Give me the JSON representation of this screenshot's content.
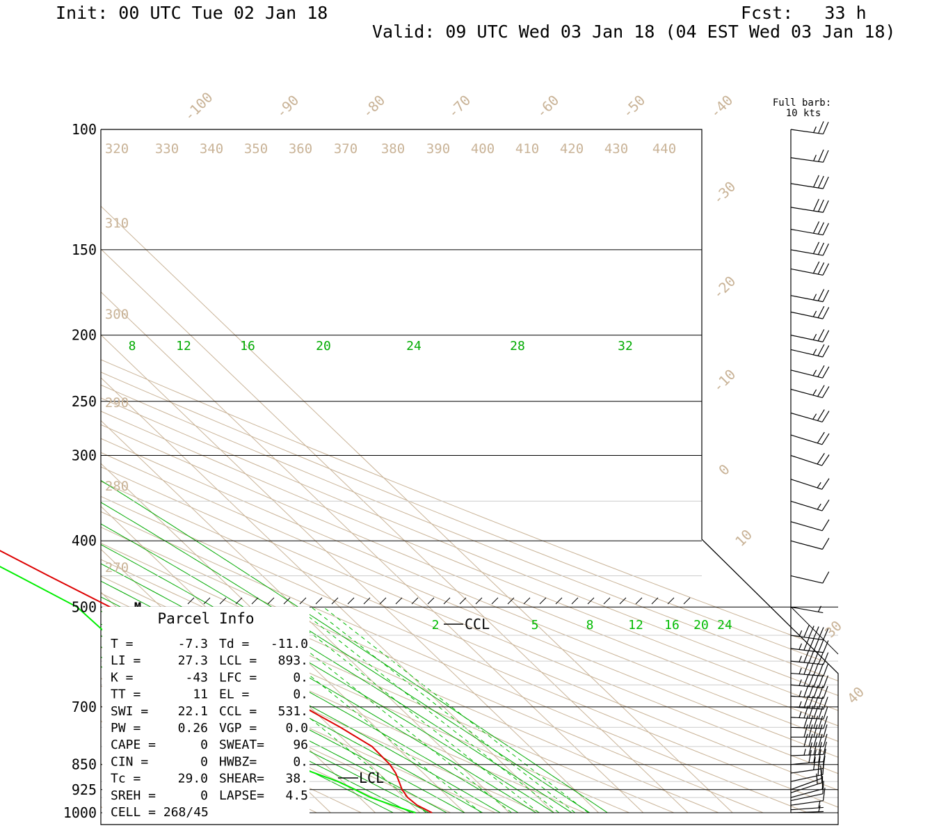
{
  "header": {
    "init": "Init: 00 UTC Tue 02 Jan 18",
    "fcst": "Fcst:   33 h",
    "valid": "Valid: 09 UTC Wed 03 Jan 18 (04 EST Wed 03 Jan 18)"
  },
  "barb_legend": {
    "line1": "Full barb:",
    "line2": "10 kts"
  },
  "marker_m": "M",
  "ccl_label": "CCL",
  "lcl_label": "LCL",
  "parcel": {
    "title": "Parcel Info",
    "rows": [
      [
        "T  =",
        "-7.3",
        "Td =",
        "-11.0"
      ],
      [
        "LI =",
        "27.3",
        "LCL =",
        "893."
      ],
      [
        "K  =",
        "-43",
        "LFC =",
        "0."
      ],
      [
        "TT =",
        "11",
        "EL  =",
        "0."
      ],
      [
        "SWI =",
        "22.1",
        "CCL =",
        "531."
      ],
      [
        "PW =",
        "0.26",
        "VGP =",
        "0.0"
      ],
      [
        "CAPE =",
        "0",
        "SWEAT=",
        "96"
      ],
      [
        "CIN =",
        "0",
        "HWBZ=",
        "0."
      ],
      [
        "Tc =",
        "29.0",
        "SHEAR=",
        "38."
      ],
      [
        "SREH =",
        "0",
        "LAPSE=",
        "4.5"
      ],
      [
        "CELL = 268/45",
        "",
        "",
        ""
      ]
    ]
  },
  "colors": {
    "temperature": "#dd0000",
    "dewpoint": "#00ee00",
    "moist_adiabat": "#00aa00",
    "mixing_ratio": "#00bb00",
    "isotherm": "#c9b397",
    "pressure_line": "#000000",
    "barb": "#000000"
  },
  "chart_data": {
    "type": "line",
    "y_axis": {
      "name": "pressure",
      "unit": "hPa",
      "scale": "log",
      "range": [
        1000,
        100
      ],
      "tick_labels": [
        "100",
        "150",
        "200",
        "250",
        "300",
        "400",
        "500",
        "700",
        "850",
        "925",
        "1000"
      ]
    },
    "isotherm_labels": [
      "-100",
      "-90",
      "-80",
      "-70",
      "-60",
      "-50",
      "-40",
      "-30",
      "-20",
      "-10",
      "0",
      "10",
      "30",
      "40"
    ],
    "dry_adiabat_labels": [
      "320",
      "330",
      "340",
      "350",
      "360",
      "370",
      "380",
      "390",
      "400",
      "410",
      "420",
      "430",
      "440",
      "310",
      "300",
      "290",
      "280",
      "270"
    ],
    "moist_adiabat_labels": [
      "8",
      "12",
      "16",
      "20",
      "24",
      "28",
      "32"
    ],
    "mixing_ratio_labels": [
      "2",
      "5",
      "8",
      "12",
      "16",
      "20",
      "24"
    ],
    "series": [
      {
        "key": "temperature",
        "points": [
          [
            1000,
            -7.3
          ],
          [
            975,
            -8.9
          ],
          [
            950,
            -9.2
          ],
          [
            925,
            -8.6
          ],
          [
            900,
            -7.4
          ],
          [
            875,
            -6.2
          ],
          [
            850,
            -5.5
          ],
          [
            800,
            -5.3
          ],
          [
            750,
            -7.9
          ],
          [
            700,
            -11.4
          ],
          [
            650,
            -15.7
          ],
          [
            600,
            -20.4
          ],
          [
            550,
            -25.4
          ],
          [
            500,
            -31.4
          ],
          [
            450,
            -37.9
          ],
          [
            400,
            -44.9
          ],
          [
            350,
            -52.6
          ],
          [
            300,
            -60.1
          ],
          [
            275,
            -64.1
          ],
          [
            250,
            -65.4
          ],
          [
            225,
            -63.5
          ],
          [
            200,
            -61.3
          ],
          [
            175,
            -61.6
          ],
          [
            150,
            -63.2
          ],
          [
            125,
            -65.2
          ],
          [
            100,
            -66.5
          ]
        ]
      },
      {
        "key": "dewpoint",
        "points": [
          [
            1000,
            -11.0
          ],
          [
            975,
            -14.4
          ],
          [
            950,
            -17.5
          ],
          [
            925,
            -19.1
          ],
          [
            900,
            -21.1
          ],
          [
            850,
            -27.6
          ],
          [
            800,
            -32.7
          ],
          [
            750,
            -37.2
          ],
          [
            700,
            -40.8
          ],
          [
            650,
            -42.7
          ],
          [
            600,
            -40.9
          ],
          [
            550,
            -38.4
          ],
          [
            500,
            -38.8
          ],
          [
            450,
            -44.8
          ],
          [
            400,
            -51.8
          ],
          [
            350,
            -60.1
          ],
          [
            300,
            -66.6
          ],
          [
            275,
            -70.1
          ],
          [
            250,
            -71.7
          ],
          [
            225,
            -73.2
          ],
          [
            200,
            -74.7
          ],
          [
            175,
            -78.5
          ],
          [
            160,
            -81.2
          ],
          [
            150,
            -82.2
          ],
          [
            125,
            -83.4
          ],
          [
            100,
            -82.6
          ]
        ]
      }
    ],
    "wind_barbs": [
      {
        "p": 1000,
        "dir": 268,
        "spd": 5
      },
      {
        "p": 990,
        "dir": 266,
        "spd": 6
      },
      {
        "p": 975,
        "dir": 262,
        "spd": 8
      },
      {
        "p": 960,
        "dir": 258,
        "spd": 10
      },
      {
        "p": 950,
        "dir": 255,
        "spd": 11
      },
      {
        "p": 935,
        "dir": 252,
        "spd": 13
      },
      {
        "p": 925,
        "dir": 250,
        "spd": 15
      },
      {
        "p": 900,
        "dir": 258,
        "spd": 20
      },
      {
        "p": 875,
        "dir": 262,
        "spd": 28
      },
      {
        "p": 850,
        "dir": 265,
        "spd": 38
      },
      {
        "p": 825,
        "dir": 268,
        "spd": 44
      },
      {
        "p": 800,
        "dir": 270,
        "spd": 48
      },
      {
        "p": 775,
        "dir": 270,
        "spd": 50
      },
      {
        "p": 750,
        "dir": 272,
        "spd": 52
      },
      {
        "p": 725,
        "dir": 273,
        "spd": 53
      },
      {
        "p": 700,
        "dir": 274,
        "spd": 54
      },
      {
        "p": 675,
        "dir": 274,
        "spd": 55
      },
      {
        "p": 650,
        "dir": 275,
        "spd": 55
      },
      {
        "p": 625,
        "dir": 275,
        "spd": 55
      },
      {
        "p": 600,
        "dir": 276,
        "spd": 55
      },
      {
        "p": 575,
        "dir": 277,
        "spd": 55
      },
      {
        "p": 550,
        "dir": 278,
        "spd": 55
      },
      {
        "p": 500,
        "dir": 280,
        "spd": 5
      },
      {
        "p": 450,
        "dir": 283,
        "spd": 10
      },
      {
        "p": 400,
        "dir": 285,
        "spd": 10
      },
      {
        "p": 375,
        "dir": 286,
        "spd": 10
      },
      {
        "p": 350,
        "dir": 287,
        "spd": 15
      },
      {
        "p": 325,
        "dir": 288,
        "spd": 15
      },
      {
        "p": 300,
        "dir": 288,
        "spd": 20
      },
      {
        "p": 280,
        "dir": 287,
        "spd": 20
      },
      {
        "p": 260,
        "dir": 286,
        "spd": 25
      },
      {
        "p": 240,
        "dir": 285,
        "spd": 25
      },
      {
        "p": 225,
        "dir": 284,
        "spd": 25
      },
      {
        "p": 210,
        "dir": 283,
        "spd": 25
      },
      {
        "p": 200,
        "dir": 282,
        "spd": 25
      },
      {
        "p": 185,
        "dir": 282,
        "spd": 25
      },
      {
        "p": 175,
        "dir": 281,
        "spd": 25
      },
      {
        "p": 160,
        "dir": 281,
        "spd": 30
      },
      {
        "p": 150,
        "dir": 280,
        "spd": 30
      },
      {
        "p": 140,
        "dir": 280,
        "spd": 30
      },
      {
        "p": 130,
        "dir": 279,
        "spd": 30
      },
      {
        "p": 120,
        "dir": 279,
        "spd": 30
      },
      {
        "p": 110,
        "dir": 278,
        "spd": 25
      },
      {
        "p": 100,
        "dir": 278,
        "spd": 25
      }
    ]
  }
}
